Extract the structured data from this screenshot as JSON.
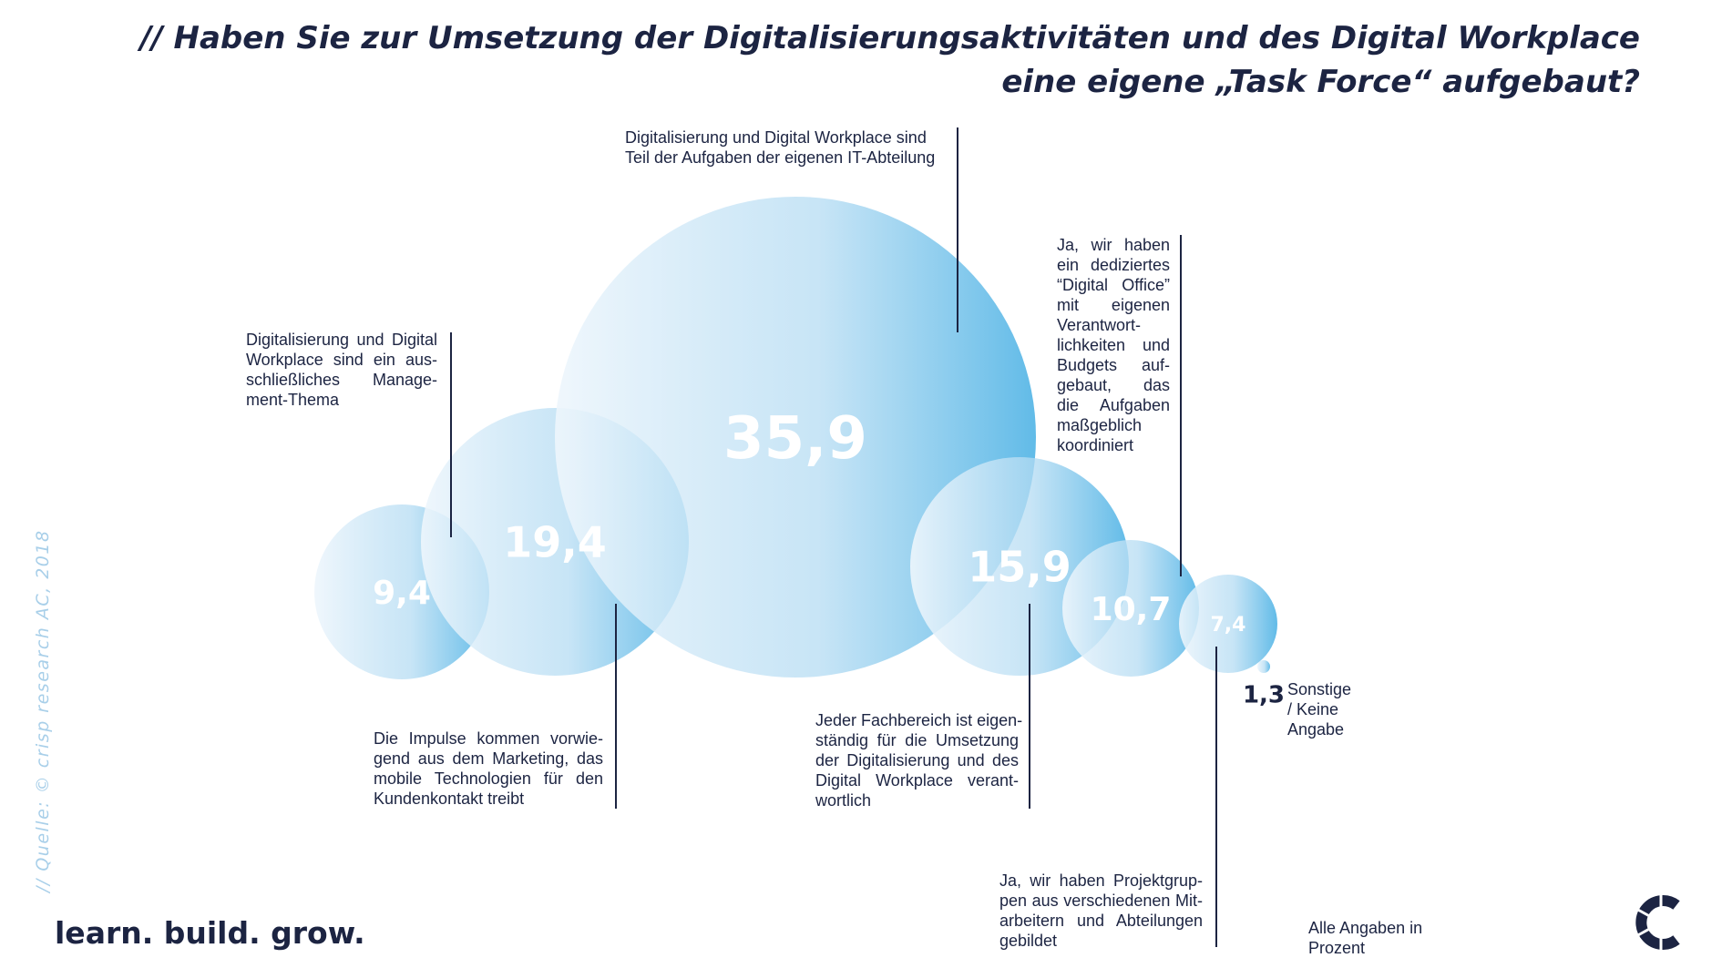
{
  "title": {
    "line1": "// Haben Sie zur Umsetzung der Digitalisierungsaktivitäten und des Digital Workplace",
    "line2": "eine eigene „Task Force“ aufgebaut?"
  },
  "chart_data": {
    "type": "bubble",
    "unit": "Prozent",
    "bubbles": [
      {
        "value": 9.4,
        "display": "9,4",
        "label_lines": [
          "Digitalisierung und Digital",
          "Workplace sind ein aus-",
          "schließliches Manage-",
          "ment-Thema"
        ]
      },
      {
        "value": 19.4,
        "display": "19,4",
        "label_lines": [
          "Die Impulse kommen vorwie-",
          "gend aus dem  Marketing, das",
          "mobile Technologien für den",
          "Kundenkontakt treibt"
        ]
      },
      {
        "value": 35.9,
        "display": "35,9",
        "label_lines": [
          "Digitalisierung und Digital Workplace sind",
          "Teil der Aufgaben der eigenen IT-Abteilung"
        ]
      },
      {
        "value": 15.9,
        "display": "15,9",
        "label_lines": [
          "Jeder Fachbereich ist eigen-",
          "ständig für die Umsetzung",
          "der Digitalisierung und des",
          "Digital Workplace verant-",
          "wortlich"
        ]
      },
      {
        "value": 10.7,
        "display": "10,7",
        "label_lines": [
          "Ja, wir haben",
          "ein dediziertes",
          "“Digital Office”",
          "mit eigenen",
          "Verantwort-",
          "lichkeiten und",
          "Budgets auf-",
          "gebaut, das",
          "die Aufgaben",
          "maßgeblich",
          "koordiniert"
        ]
      },
      {
        "value": 7.4,
        "display": "7,4",
        "label_lines": [
          "Ja, wir haben Projektgrup-",
          "pen aus verschiedenen Mit-",
          "arbeitern und Abteilungen",
          "gebildet"
        ]
      },
      {
        "value": 1.3,
        "display": "1,3",
        "label_lines": [
          "Sonstige",
          "/ Keine",
          "Angabe"
        ]
      }
    ],
    "colors": {
      "bubble_light": "#eef6fc",
      "bubble_dark": "#44b0e4",
      "text_dark": "#1c2442"
    }
  },
  "footer": {
    "source": "// Quelle: © crisp research AC, 2018",
    "slogan": "learn. build. grow.",
    "note_line1": "Alle Angaben in",
    "note_line2": "Prozent",
    "logo_icon": "crisp-logo-icon"
  }
}
